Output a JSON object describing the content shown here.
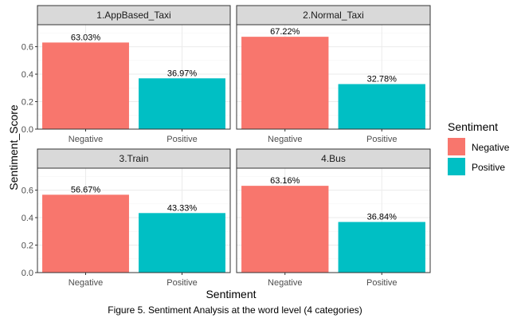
{
  "chart_data": {
    "type": "bar",
    "facet_layout": "2x2 grid",
    "xlabel": "Sentiment",
    "ylabel": "Sentiment_Score",
    "ylim": [
      0,
      0.76
    ],
    "yticks": [
      0.0,
      0.2,
      0.4,
      0.6
    ],
    "ytick_labels": [
      "0.0",
      "0.2",
      "0.4",
      "0.6"
    ],
    "categories": [
      "Negative",
      "Positive"
    ],
    "legend": {
      "title": "Sentiment",
      "position": "right",
      "items": [
        {
          "label": "Negative",
          "color": "#F8766D"
        },
        {
          "label": "Positive",
          "color": "#00BFC4"
        }
      ]
    },
    "grid": true,
    "panels": [
      {
        "title": "1.AppBased_Taxi",
        "values": [
          0.6303,
          0.3697
        ],
        "labels": [
          "63.03%",
          "36.97%"
        ]
      },
      {
        "title": "2.Normal_Taxi",
        "values": [
          0.6722,
          0.3278
        ],
        "labels": [
          "67.22%",
          "32.78%"
        ]
      },
      {
        "title": "3.Train",
        "values": [
          0.5667,
          0.4333
        ],
        "labels": [
          "56.67%",
          "43.33%"
        ]
      },
      {
        "title": "4.Bus",
        "values": [
          0.6316,
          0.3684
        ],
        "labels": [
          "63.16%",
          "36.84%"
        ]
      }
    ],
    "caption": "Figure 5. Sentiment Analysis at the word level (4 categories)"
  },
  "colors": {
    "negative": "#F8766D",
    "positive": "#00BFC4",
    "strip_bg": "#D9D9D9",
    "panel_border": "#333333",
    "grid_major": "#EBEBEB",
    "grid_minor": "#F5F5F5"
  }
}
